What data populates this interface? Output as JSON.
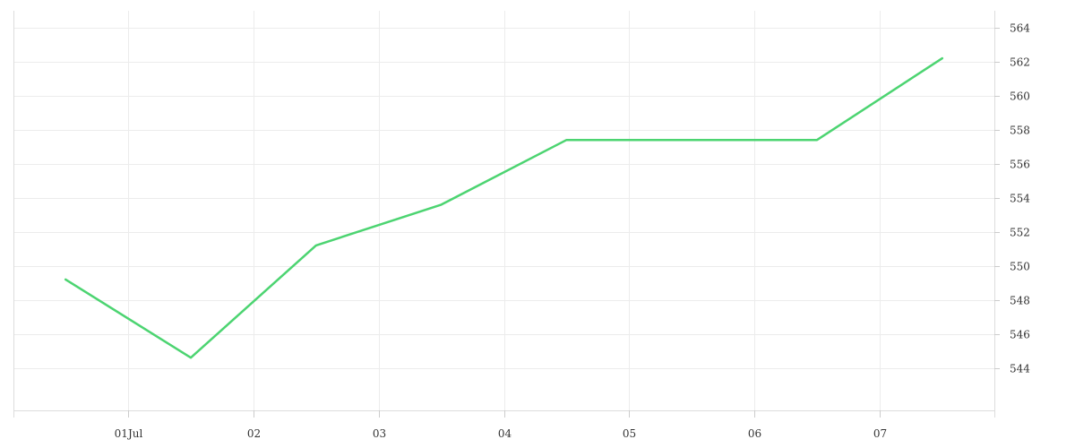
{
  "chart_data": {
    "type": "line",
    "title": "",
    "xlabel": "",
    "ylabel": "",
    "x_tick_labels": [
      "01Jul",
      "02",
      "03",
      "04",
      "05",
      "06",
      "07"
    ],
    "x_ticks": [
      "2024-07-01",
      "2024-07-02",
      "2024-07-03",
      "2024-07-04",
      "2024-07-05",
      "2024-07-06",
      "2024-07-07"
    ],
    "x": [
      "2024-06-30T12:00",
      "2024-07-01T12:00",
      "2024-07-02T12:00",
      "2024-07-03T12:00",
      "2024-07-04T12:00",
      "2024-07-05T12:00",
      "2024-07-06T12:00",
      "2024-07-07T12:00"
    ],
    "series": [
      {
        "values": [
          549.2,
          544.6,
          551.2,
          553.6,
          557.4,
          557.4,
          557.4,
          562.2
        ],
        "color": "#4cd471"
      }
    ],
    "ylim": [
      541.5,
      565
    ],
    "y_ticks": [
      544,
      546,
      548,
      550,
      552,
      554,
      556,
      558,
      560,
      562,
      564
    ],
    "y_axis_position": "right",
    "grid": true,
    "legend": "none"
  }
}
